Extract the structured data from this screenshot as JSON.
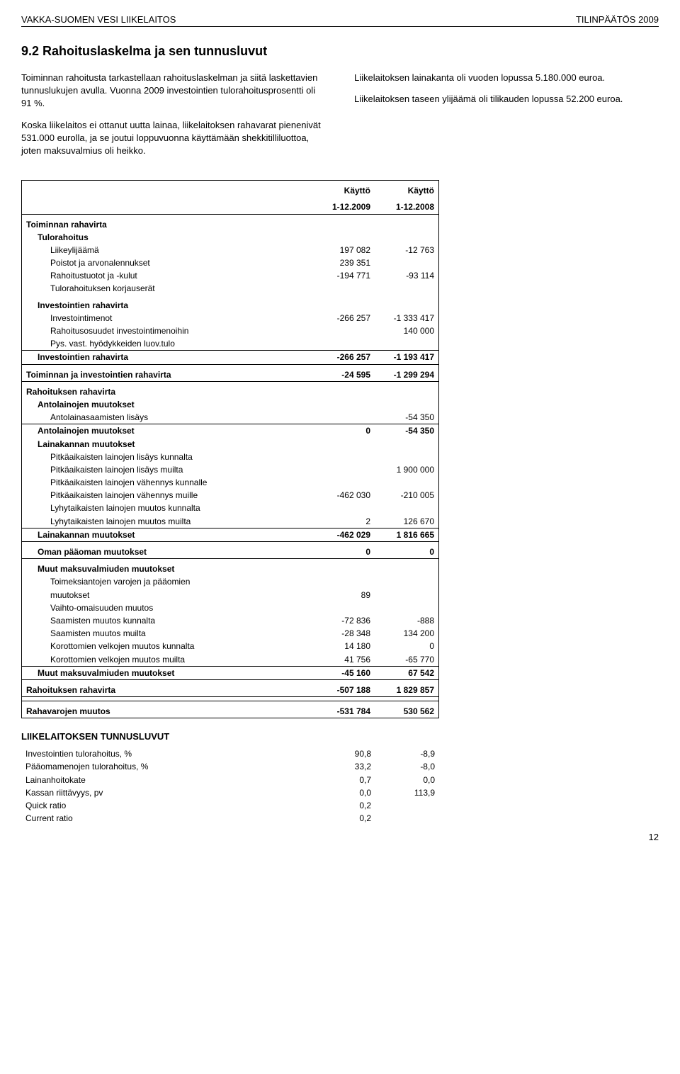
{
  "header": {
    "left": "VAKKA-SUOMEN VESI LIIKELAITOS",
    "right": "TILINPÄÄTÖS 2009"
  },
  "title": "9.2 Rahoituslaskelma ja sen tunnusluvut",
  "intro": {
    "left_p1": "Toiminnan rahoitusta tarkastellaan rahoituslaskelman ja siitä laskettavien tunnuslukujen avulla. Vuonna 2009 investointien tulorahoitusprosentti oli 91 %.",
    "left_p2": "Koska liikelaitos ei ottanut uutta lainaa, liikelaitoksen rahavarat pienenivät 531.000 eurolla, ja se joutui loppuvuonna käyttämään shekkitilliluottoa, joten maksuvalmius oli heikko.",
    "right_p1": "Liikelaitoksen lainakanta oli vuoden lopussa 5.180.000 euroa.",
    "right_p2": "Liikelaitoksen taseen ylijäämä oli tilikauden lopussa 52.200 euroa."
  },
  "col_headers": {
    "c1a": "Käyttö",
    "c1b": "1-12.2009",
    "c2a": "Käyttö",
    "c2b": "1-12.2008"
  },
  "rows": {
    "toiminnan_rahavirta": "Toiminnan rahavirta",
    "tulorahoitus": "Tulorahoitus",
    "liikeylijaama": "Liikeylijäämä",
    "liikeylijaama_v1": "197 082",
    "liikeylijaama_v2": "-12 763",
    "poistot": "Poistot ja arvonalennukset",
    "poistot_v1": "239 351",
    "rahoitustuotot": "Rahoitustuotot ja -kulut",
    "rahoitustuotot_v1": "-194 771",
    "rahoitustuotot_v2": "-93 114",
    "korjauserat": "Tulorahoituksen korjauserät",
    "inv_rahavirta_h": "Investointien rahavirta",
    "investointimenot": "Investointimenot",
    "investointimenot_v1": "-266 257",
    "investointimenot_v2": "-1 333 417",
    "rahoitusosuudet": "Rahoitusosuudet investointimenoihin",
    "rahoitusosuudet_v2": "140 000",
    "pys_vast": "Pys. vast. hyödykkeiden luov.tulo",
    "inv_rahavirta_t": "Investointien rahavirta",
    "inv_rahavirta_v1": "-266 257",
    "inv_rahavirta_v2": "-1 193 417",
    "toim_inv": "Toiminnan ja investointien rahavirta",
    "toim_inv_v1": "-24 595",
    "toim_inv_v2": "-1 299 294",
    "rahoituksen_rahavirta": "Rahoituksen rahavirta",
    "antolain_m": "Antolainojen muutokset",
    "antolain_lis": "Antolainasaamisten lisäys",
    "antolain_lis_v2": "-54 350",
    "antolain_mt": "Antolainojen muutokset",
    "antolain_mt_v1": "0",
    "antolain_mt_v2": "-54 350",
    "lainakannan_m": "Lainakannan muutokset",
    "pla_lis_k": "Pitkäaikaisten lainojen lisäys kunnalta",
    "pla_lis_m": "Pitkäaikaisten lainojen lisäys muilta",
    "pla_lis_m_v2": "1 900 000",
    "pla_vah_k": "Pitkäaikaisten lainojen vähennys kunnalle",
    "pla_vah_m": "Pitkäaikaisten lainojen vähennys muille",
    "pla_vah_m_v1": "-462 030",
    "pla_vah_m_v2": "-210 005",
    "lyh_k": "Lyhytaikaisten lainojen muutos kunnalta",
    "lyh_m": "Lyhytaikaisten lainojen muutos muilta",
    "lyh_m_v1": "2",
    "lyh_m_v2": "126 670",
    "lainakannan_mt": "Lainakannan muutokset",
    "lainakannan_mt_v1": "-462 029",
    "lainakannan_mt_v2": "1 816 665",
    "oman_paaoman": "Oman pääoman muutokset",
    "oman_paaoman_v1": "0",
    "oman_paaoman_v2": "0",
    "muut_maksu_h": "Muut maksuvalmiuden muutokset",
    "toimeksiantojen_a": "Toimeksiantojen varojen ja pääomien",
    "toimeksiantojen_b": "muutokset",
    "toimeksiantojen_v1": "89",
    "vaihto": "Vaihto-omaisuuden muutos",
    "saam_k": "Saamisten muutos kunnalta",
    "saam_k_v1": "-72 836",
    "saam_k_v2": "-888",
    "saam_m": "Saamisten muutos muilta",
    "saam_m_v1": "-28 348",
    "saam_m_v2": "134 200",
    "kor_k": "Korottomien velkojen muutos kunnalta",
    "kor_k_v1": "14 180",
    "kor_k_v2": "0",
    "kor_m": "Korottomien velkojen muutos muilta",
    "kor_m_v1": "41 756",
    "kor_m_v2": "-65 770",
    "muut_maksu_t": "Muut maksuvalmiuden muutokset",
    "muut_maksu_t_v1": "-45 160",
    "muut_maksu_t_v2": "67 542",
    "rah_rahavirta_t": "Rahoituksen rahavirta",
    "rah_rahavirta_v1": "-507 188",
    "rah_rahavirta_v2": "1 829 857",
    "rahavarojen": "Rahavarojen muutos",
    "rahavarojen_v1": "-531 784",
    "rahavarojen_v2": "530 562"
  },
  "tunnusluvut": {
    "title": "LIIKELAITOKSEN TUNNUSLUVUT",
    "r1": "Investointien tulorahoitus, %",
    "r1_v1": "90,8",
    "r1_v2": "-8,9",
    "r2": "Pääomamenojen tulorahoitus, %",
    "r2_v1": "33,2",
    "r2_v2": "-8,0",
    "r3": "Lainanhoitokate",
    "r3_v1": "0,7",
    "r3_v2": "0,0",
    "r4": "Kassan riittävyys, pv",
    "r4_v1": "0,0",
    "r4_v2": "113,9",
    "r5": "Quick ratio",
    "r5_v1": "0,2",
    "r6": "Current ratio",
    "r6_v1": "0,2"
  },
  "page_number": "12"
}
